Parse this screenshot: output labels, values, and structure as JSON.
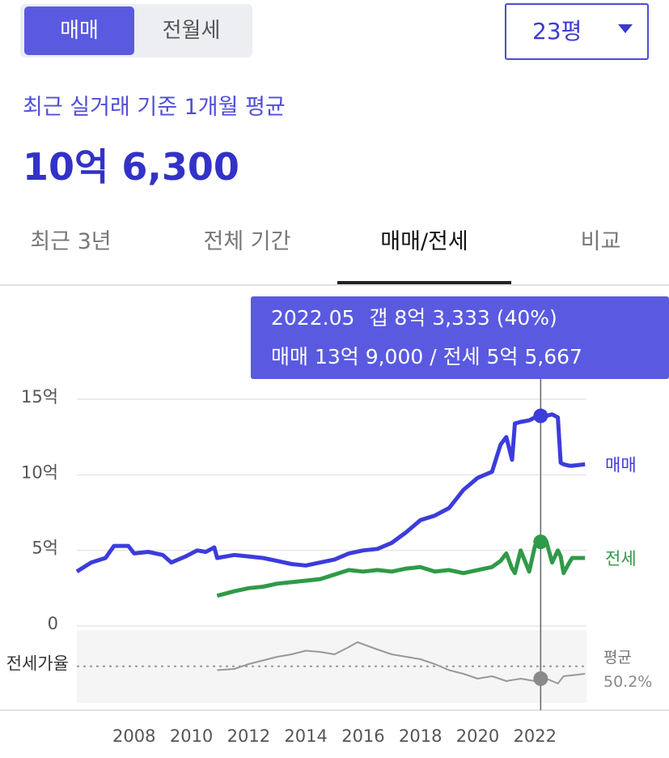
{
  "toggle": {
    "options": [
      "매매",
      "전월세"
    ],
    "active": 0
  },
  "size_select": "23평",
  "summary": {
    "caption": "최근 실거래 기준 1개월 평균",
    "price": "10억 6,300"
  },
  "tabs": {
    "items": [
      "최근 3년",
      "전체 기간",
      "매매/전세",
      "비교"
    ],
    "active": 2
  },
  "chart_data": [
    {
      "type": "line",
      "x": [
        2006.0,
        2006.5,
        2007.0,
        2007.3,
        2007.8,
        2008.0,
        2008.5,
        2009.0,
        2009.3,
        2009.8,
        2010.2,
        2010.5,
        2010.8,
        2010.9,
        2011.5,
        2012.0,
        2012.5,
        2013.0,
        2013.5,
        2014.0,
        2014.5,
        2015.0,
        2015.5,
        2016.0,
        2016.5,
        2017.0,
        2017.5,
        2018.0,
        2018.5,
        2019.0,
        2019.5,
        2020.0,
        2020.5,
        2020.8,
        2021.0,
        2021.2,
        2021.3,
        2021.5,
        2021.8,
        2022.0,
        2022.4,
        2022.6,
        2022.8,
        2022.9,
        2023.0,
        2023.2,
        2023.3,
        2023.75
      ],
      "series": [
        {
          "name": "매매",
          "color": "#3c3cdc",
          "values": [
            3.6,
            4.2,
            4.5,
            5.3,
            5.3,
            4.8,
            4.9,
            4.7,
            4.2,
            4.6,
            5.0,
            4.9,
            5.2,
            4.5,
            4.7,
            4.6,
            4.5,
            4.3,
            4.1,
            4.0,
            4.2,
            4.4,
            4.8,
            5.0,
            5.1,
            5.5,
            6.2,
            7.0,
            7.3,
            7.8,
            9.0,
            9.8,
            10.2,
            12.0,
            12.5,
            11.0,
            13.4,
            13.5,
            13.6,
            13.8,
            13.9,
            14.0,
            13.8,
            10.8,
            10.7,
            10.6,
            10.6,
            10.7
          ]
        },
        {
          "name": "전세",
          "color": "#2f9a48",
          "values": [
            null,
            null,
            null,
            null,
            null,
            null,
            null,
            null,
            null,
            null,
            null,
            null,
            null,
            2.0,
            2.3,
            2.5,
            2.6,
            2.8,
            2.9,
            3.0,
            3.1,
            3.4,
            3.7,
            3.6,
            3.7,
            3.6,
            3.8,
            3.9,
            3.6,
            3.7,
            3.5,
            3.7,
            3.9,
            4.3,
            4.8,
            3.8,
            3.5,
            5.0,
            3.6,
            5.3,
            5.6,
            4.2,
            5.0,
            4.6,
            3.5,
            4.2,
            4.5,
            4.5
          ]
        }
      ],
      "xlim": [
        2006,
        2023.8
      ],
      "xticks": [
        2008,
        2010,
        2012,
        2014,
        2016,
        2018,
        2020,
        2022
      ],
      "ylim": [
        0,
        15
      ],
      "yticks": [
        {
          "value": 15,
          "label": "15억"
        },
        {
          "value": 10,
          "label": "10억"
        },
        {
          "value": 5,
          "label": "5억"
        },
        0
      ],
      "grid": true,
      "tooltip": {
        "title": "2022.05",
        "gap": "갭 8억 3,333 (40%)",
        "detail": "매매 13억 9,000 / 전세 5억 5,667"
      },
      "highlight": {
        "x": 2022.2,
        "values": [
          13.9,
          5.5667
        ]
      }
    },
    {
      "type": "line",
      "ylabel": "전세가율",
      "x": [
        2010.9,
        2011.5,
        2012,
        2012.5,
        2013,
        2013.5,
        2014,
        2014.5,
        2015,
        2015.5,
        2015.8,
        2016.5,
        2017,
        2017.5,
        2018,
        2018.5,
        2019,
        2019.5,
        2020,
        2020.5,
        2021,
        2021.5,
        2022,
        2022.4,
        2022.8,
        2023,
        2023.4,
        2023.75
      ],
      "values": [
        47,
        48,
        52,
        55,
        58,
        60,
        63,
        62,
        60,
        66,
        70,
        64,
        60,
        58,
        56,
        52,
        47,
        44,
        40,
        42,
        38,
        40,
        38,
        40,
        36,
        42,
        43,
        44
      ],
      "color": "#999999",
      "xlim": [
        2006,
        2023.8
      ],
      "ylim": [
        20,
        80
      ],
      "average": {
        "label": "평균",
        "value": 50.2,
        "value_label": "50.2%"
      },
      "highlight": {
        "x": 2022.2,
        "value": 40
      }
    }
  ]
}
